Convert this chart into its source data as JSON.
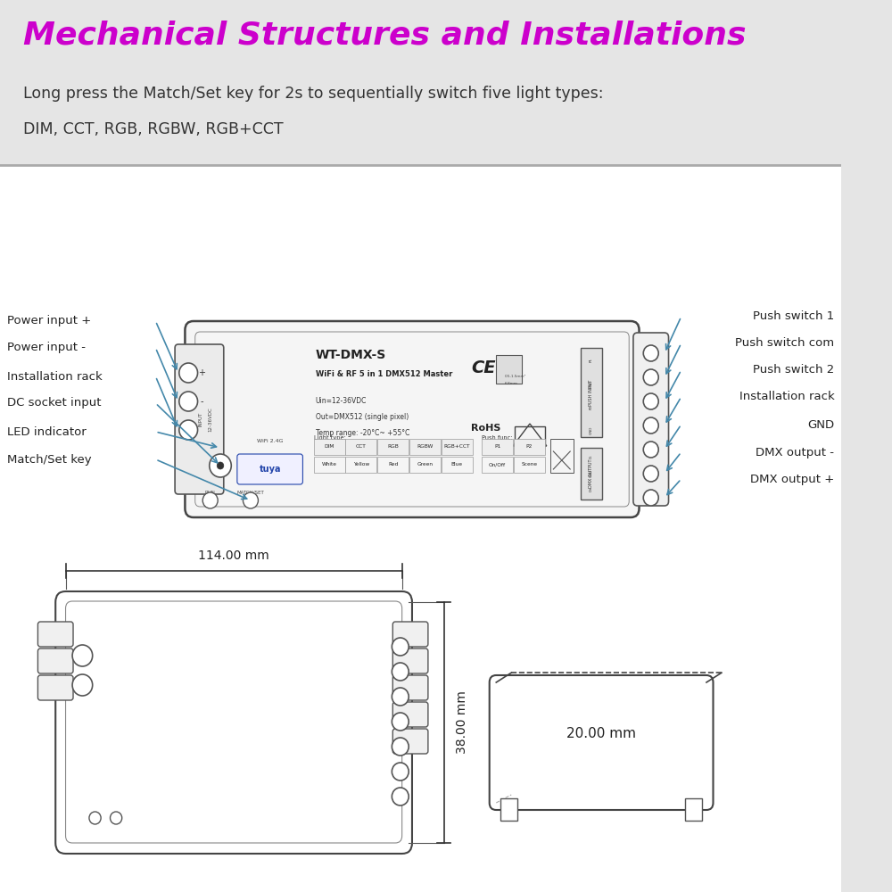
{
  "bg_color": "#e5e5e5",
  "white_bg": "#ffffff",
  "title": "Mechanical Structures and Installations",
  "title_color": "#cc00cc",
  "subtitle1": "Long press the Match/Set key for 2s to sequentially switch five light types:",
  "subtitle2": "DIM, CCT, RGB, RGBW, RGB+CCT",
  "subtitle_color": "#333333",
  "left_labels": [
    "Power input +",
    "Power input -",
    "Installation rack",
    "DC socket input",
    "LED indicator",
    "Match/Set key"
  ],
  "right_labels": [
    "Push switch 1",
    "Push switch com",
    "Push switch 2",
    "Installation rack",
    "GND",
    "DMX output -",
    "DMX output +"
  ],
  "line_color": "#4488aa",
  "device_model": "WT-DMX-S",
  "device_subtitle": "WiFi & RF 5 in 1 DMX512 Master",
  "device_line1": "Uin=12-36VDC",
  "device_line2": "Out=DMX512 (single pixel)",
  "device_line3": "Temp range: -20°C~ +55°C",
  "light_type_labels": [
    "DIM",
    "CCT",
    "RGB",
    "RGBW",
    "RGB+CCT"
  ],
  "light_type_colors": [
    "White",
    "Yellow",
    "Red",
    "Green",
    "Blue"
  ],
  "push_func_labels": [
    "P1",
    "P2"
  ],
  "push_func_colors": [
    "On/Off",
    "Scene"
  ],
  "dim_label": "114.00 mm",
  "height_label": "38.00 mm",
  "depth_label": "20.00 mm"
}
